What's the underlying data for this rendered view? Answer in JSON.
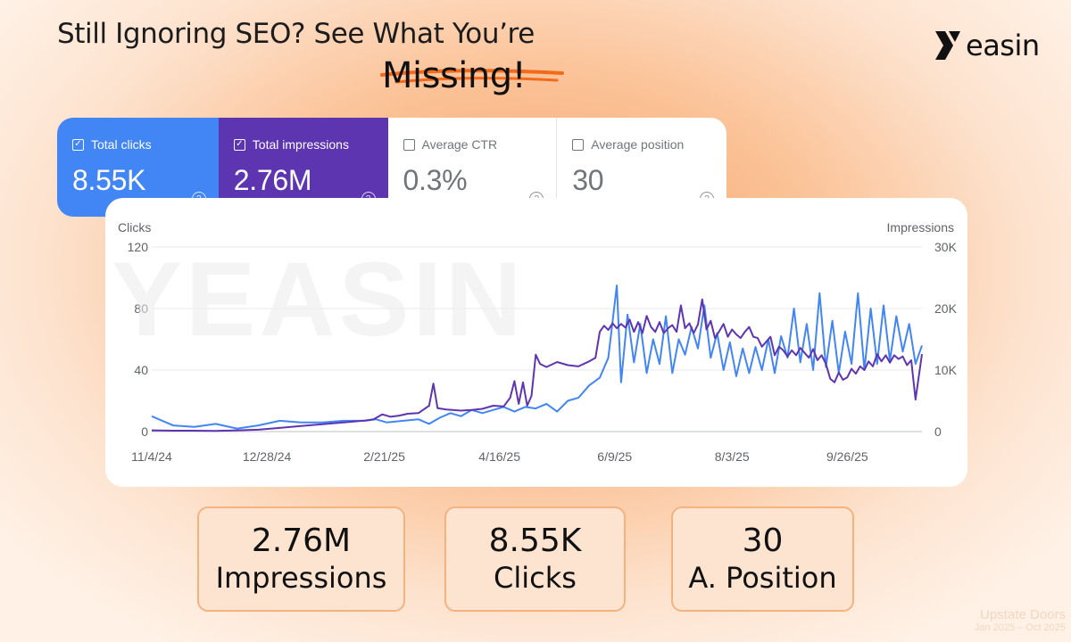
{
  "header": {
    "line1": "Still Ignoring SEO? See What You’re",
    "line2": "Missing!",
    "logo_text": "easin"
  },
  "metrics": [
    {
      "label": "Total clicks",
      "value": "8.55K",
      "checked": true
    },
    {
      "label": "Total impressions",
      "value": "2.76M",
      "checked": true
    },
    {
      "label": "Average CTR",
      "value": "0.3%",
      "checked": false
    },
    {
      "label": "Average position",
      "value": "30",
      "checked": false
    }
  ],
  "colors": {
    "clicks": "#4285f4",
    "impressions": "#5e35b1"
  },
  "chart_data": {
    "type": "line",
    "watermark": "YEASIN",
    "ylabel_left": "Clicks",
    "ylabel_right": "Impressions",
    "ylim_left": [
      0,
      120
    ],
    "ylim_right": [
      0,
      30000
    ],
    "yticks_left": [
      "0",
      "40",
      "80",
      "120"
    ],
    "yticks_right": [
      "0",
      "10K",
      "20K",
      "30K"
    ],
    "x_tick_labels": [
      "11/4/24",
      "12/28/24",
      "2/21/25",
      "4/16/25",
      "6/9/25",
      "8/3/25",
      "9/26/25"
    ],
    "x_range_days": [
      0,
      361
    ],
    "x_tick_days": [
      0,
      54,
      109,
      163,
      217,
      272,
      326
    ],
    "series": [
      {
        "name": "Clicks",
        "axis": "left",
        "points": [
          [
            0,
            10
          ],
          [
            10,
            4
          ],
          [
            20,
            3
          ],
          [
            30,
            5
          ],
          [
            40,
            2
          ],
          [
            50,
            4
          ],
          [
            60,
            7
          ],
          [
            70,
            6
          ],
          [
            80,
            6
          ],
          [
            90,
            7
          ],
          [
            100,
            7
          ],
          [
            105,
            8
          ],
          [
            110,
            6
          ],
          [
            118,
            7
          ],
          [
            125,
            8
          ],
          [
            130,
            5
          ],
          [
            135,
            9
          ],
          [
            140,
            12
          ],
          [
            145,
            10
          ],
          [
            150,
            14
          ],
          [
            155,
            12
          ],
          [
            160,
            14
          ],
          [
            165,
            16
          ],
          [
            170,
            13
          ],
          [
            175,
            16
          ],
          [
            180,
            15
          ],
          [
            185,
            18
          ],
          [
            190,
            13
          ],
          [
            195,
            20
          ],
          [
            200,
            22
          ],
          [
            205,
            30
          ],
          [
            210,
            35
          ],
          [
            214,
            48
          ],
          [
            218,
            95
          ],
          [
            220,
            32
          ],
          [
            223,
            76
          ],
          [
            226,
            45
          ],
          [
            229,
            70
          ],
          [
            232,
            38
          ],
          [
            235,
            60
          ],
          [
            238,
            44
          ],
          [
            241,
            75
          ],
          [
            244,
            38
          ],
          [
            247,
            60
          ],
          [
            250,
            50
          ],
          [
            253,
            68
          ],
          [
            256,
            54
          ],
          [
            259,
            82
          ],
          [
            262,
            48
          ],
          [
            265,
            64
          ],
          [
            268,
            40
          ],
          [
            271,
            58
          ],
          [
            274,
            36
          ],
          [
            277,
            54
          ],
          [
            280,
            38
          ],
          [
            283,
            55
          ],
          [
            286,
            40
          ],
          [
            289,
            60
          ],
          [
            292,
            38
          ],
          [
            295,
            62
          ],
          [
            298,
            48
          ],
          [
            301,
            80
          ],
          [
            304,
            45
          ],
          [
            307,
            70
          ],
          [
            310,
            40
          ],
          [
            313,
            90
          ],
          [
            316,
            42
          ],
          [
            319,
            72
          ],
          [
            322,
            38
          ],
          [
            325,
            65
          ],
          [
            328,
            44
          ],
          [
            331,
            90
          ],
          [
            334,
            40
          ],
          [
            337,
            80
          ],
          [
            340,
            44
          ],
          [
            343,
            82
          ],
          [
            346,
            46
          ],
          [
            349,
            75
          ],
          [
            352,
            52
          ],
          [
            355,
            70
          ],
          [
            358,
            44
          ],
          [
            361,
            56
          ]
        ]
      },
      {
        "name": "Impressions",
        "axis": "right",
        "points": [
          [
            0,
            200
          ],
          [
            10,
            150
          ],
          [
            20,
            150
          ],
          [
            30,
            100
          ],
          [
            40,
            200
          ],
          [
            50,
            300
          ],
          [
            60,
            600
          ],
          [
            70,
            900
          ],
          [
            80,
            1200
          ],
          [
            90,
            1500
          ],
          [
            100,
            1800
          ],
          [
            104,
            2000
          ],
          [
            108,
            2800
          ],
          [
            112,
            2400
          ],
          [
            116,
            2600
          ],
          [
            120,
            2900
          ],
          [
            125,
            3000
          ],
          [
            130,
            4200
          ],
          [
            132,
            7800
          ],
          [
            134,
            3800
          ],
          [
            138,
            3600
          ],
          [
            145,
            3400
          ],
          [
            150,
            3500
          ],
          [
            155,
            3700
          ],
          [
            160,
            4200
          ],
          [
            165,
            4100
          ],
          [
            168,
            5500
          ],
          [
            170,
            8200
          ],
          [
            172,
            4500
          ],
          [
            174,
            8000
          ],
          [
            176,
            4200
          ],
          [
            178,
            5800
          ],
          [
            180,
            12500
          ],
          [
            182,
            11000
          ],
          [
            185,
            10500
          ],
          [
            190,
            11300
          ],
          [
            195,
            10800
          ],
          [
            200,
            10600
          ],
          [
            205,
            11400
          ],
          [
            208,
            12000
          ],
          [
            210,
            16200
          ],
          [
            212,
            17200
          ],
          [
            214,
            16500
          ],
          [
            216,
            17600
          ],
          [
            218,
            16800
          ],
          [
            220,
            17500
          ],
          [
            222,
            16900
          ],
          [
            224,
            18200
          ],
          [
            226,
            16200
          ],
          [
            228,
            17800
          ],
          [
            230,
            16000
          ],
          [
            232,
            18800
          ],
          [
            234,
            17000
          ],
          [
            236,
            16200
          ],
          [
            238,
            17800
          ],
          [
            240,
            16000
          ],
          [
            242,
            16800
          ],
          [
            244,
            17300
          ],
          [
            246,
            16200
          ],
          [
            248,
            20500
          ],
          [
            250,
            16800
          ],
          [
            252,
            17600
          ],
          [
            254,
            16000
          ],
          [
            256,
            17400
          ],
          [
            258,
            21500
          ],
          [
            260,
            16600
          ],
          [
            262,
            18000
          ],
          [
            264,
            15200
          ],
          [
            266,
            16300
          ],
          [
            268,
            17500
          ],
          [
            270,
            15400
          ],
          [
            272,
            16600
          ],
          [
            274,
            15800
          ],
          [
            276,
            15200
          ],
          [
            278,
            16200
          ],
          [
            280,
            17000
          ],
          [
            282,
            15400
          ],
          [
            284,
            15200
          ],
          [
            286,
            13800
          ],
          [
            288,
            14600
          ],
          [
            290,
            15400
          ],
          [
            292,
            12400
          ],
          [
            294,
            13800
          ],
          [
            296,
            13200
          ],
          [
            298,
            12200
          ],
          [
            300,
            13200
          ],
          [
            302,
            12400
          ],
          [
            304,
            13600
          ],
          [
            306,
            12800
          ],
          [
            308,
            12000
          ],
          [
            310,
            13400
          ],
          [
            312,
            11600
          ],
          [
            314,
            12400
          ],
          [
            316,
            11000
          ],
          [
            318,
            8600
          ],
          [
            320,
            8000
          ],
          [
            322,
            9600
          ],
          [
            324,
            8400
          ],
          [
            326,
            8800
          ],
          [
            328,
            10200
          ],
          [
            330,
            9400
          ],
          [
            332,
            10600
          ],
          [
            334,
            10000
          ],
          [
            336,
            11400
          ],
          [
            338,
            10600
          ],
          [
            340,
            12600
          ],
          [
            342,
            11400
          ],
          [
            344,
            12400
          ],
          [
            346,
            11200
          ],
          [
            348,
            12400
          ],
          [
            350,
            11800
          ],
          [
            352,
            12200
          ],
          [
            354,
            10800
          ],
          [
            356,
            11600
          ],
          [
            358,
            5200
          ],
          [
            361,
            12600
          ]
        ]
      }
    ]
  },
  "stats": [
    {
      "value": "2.76M",
      "label": "Impressions"
    },
    {
      "value": "8.55K",
      "label": "Clicks"
    },
    {
      "value": "30",
      "label": "A. Position"
    }
  ],
  "corner": {
    "line1": "Upstate Doors",
    "line2": "Jan 2025 – Oct 2025"
  }
}
